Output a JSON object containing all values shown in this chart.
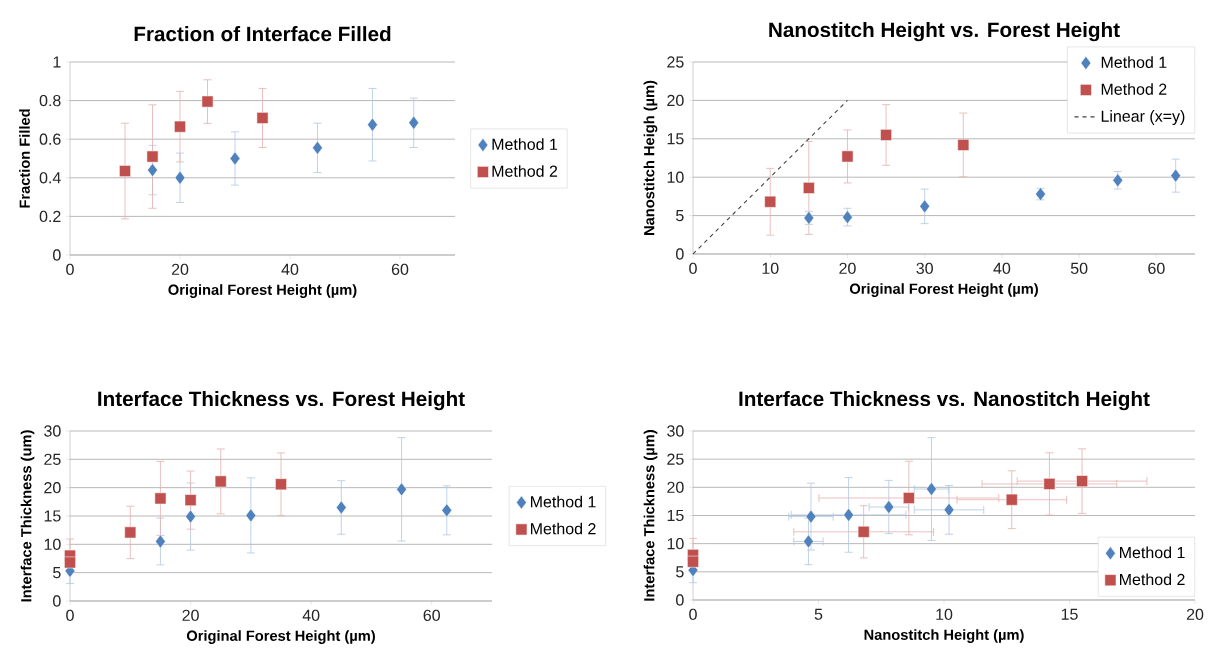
{
  "chart_data": [
    {
      "type": "scatter",
      "title": "Fraction of Interface Filled",
      "xlabel": "Original Forest Height (µm)",
      "ylabel": "Fraction Filled",
      "xlim": [
        0,
        70
      ],
      "xticks": [
        0,
        20,
        40,
        60
      ],
      "ylim": [
        0,
        1
      ],
      "yticks": [
        0,
        0.2,
        0.4,
        0.6,
        0.8,
        1
      ],
      "grid": "y",
      "legend": "right",
      "series": [
        {
          "name": "Method 1",
          "color": "#4f81bd",
          "marker": "diamond",
          "x": [
            15,
            20,
            30,
            45,
            55,
            62.5
          ],
          "values": [
            0.44,
            0.4,
            0.5,
            0.555,
            0.675,
            0.685
          ],
          "errors": [
            0.13,
            0.13,
            0.14,
            0.13,
            0.19,
            0.13
          ]
        },
        {
          "name": "Method 2",
          "color": "#c0504d",
          "marker": "square",
          "x": [
            10,
            15,
            20,
            25,
            35
          ],
          "values": [
            0.435,
            0.51,
            0.665,
            0.795,
            0.71
          ],
          "errors": [
            0.25,
            0.27,
            0.185,
            0.115,
            0.155
          ]
        }
      ]
    },
    {
      "type": "scatter",
      "title": "Nanostitch Height vs. Forest Height",
      "xlabel": "Original Forest Height (µm)",
      "ylabel": "Nanostitch Heigh (µm)",
      "xlim": [
        0,
        65
      ],
      "xticks": [
        0,
        10,
        20,
        30,
        40,
        50,
        60
      ],
      "ylim": [
        0,
        25
      ],
      "yticks": [
        0,
        5,
        10,
        15,
        20,
        25
      ],
      "grid": "y",
      "legend": "top right",
      "series": [
        {
          "name": "Method 1",
          "color": "#4f81bd",
          "marker": "diamond",
          "x": [
            15,
            20,
            30,
            45,
            55,
            62.5
          ],
          "values": [
            4.7,
            4.8,
            6.2,
            7.8,
            9.6,
            10.2
          ],
          "errors": [
            0.9,
            1.2,
            2.3,
            0.8,
            1.2,
            2.2
          ]
        },
        {
          "name": "Method 2",
          "color": "#c0504d",
          "marker": "square",
          "x": [
            10,
            15,
            20,
            25,
            35
          ],
          "values": [
            6.8,
            8.6,
            12.7,
            15.5,
            14.2
          ],
          "errors": [
            4.4,
            6.1,
            3.5,
            4.0,
            4.2
          ]
        },
        {
          "name": "Linear (x=y)",
          "type": "line",
          "color": "#404040",
          "marker": "none",
          "line_style": "dashed",
          "x": [
            0,
            20
          ],
          "values": [
            0,
            20
          ]
        }
      ]
    },
    {
      "type": "scatter",
      "title": "Interface Thickness vs. Forest Height",
      "xlabel": "Original Forest Height (µm)",
      "ylabel": "Interface Thickness (um)",
      "xlim": [
        0,
        70
      ],
      "xticks": [
        0,
        20,
        40,
        60
      ],
      "ylim": [
        0,
        30
      ],
      "yticks": [
        0,
        5,
        10,
        15,
        20,
        25,
        30
      ],
      "grid": "y",
      "legend": "right",
      "series": [
        {
          "name": "Method 1",
          "color": "#4f81bd",
          "marker": "diamond",
          "x": [
            0,
            15,
            20,
            30,
            45,
            55,
            62.5
          ],
          "values": [
            5.3,
            10.5,
            14.9,
            15.1,
            16.5,
            19.7,
            16.0
          ],
          "errors": [
            2.3,
            4.2,
            6.0,
            6.7,
            4.8,
            9.2,
            4.4
          ]
        },
        {
          "name": "Method 2",
          "color": "#c0504d",
          "marker": "square",
          "x": [
            0,
            0,
            10,
            15,
            20,
            25,
            35
          ],
          "values": [
            8.0,
            6.8,
            12.1,
            18.1,
            17.8,
            21.1,
            20.6
          ],
          "errors": [
            3.0,
            null,
            4.7,
            6.6,
            5.2,
            5.8,
            5.6
          ]
        }
      ]
    },
    {
      "type": "scatter",
      "title": "Interface Thickness vs. Nanostitch Height",
      "xlabel": "Nanostitch Height (µm)",
      "ylabel": "Interface Thickness (µm)",
      "xlim": [
        0,
        20
      ],
      "xticks": [
        0,
        5,
        10,
        15,
        20
      ],
      "ylim": [
        0,
        30
      ],
      "yticks": [
        0,
        5,
        10,
        15,
        20,
        25,
        30
      ],
      "grid": "y",
      "legend": "bottom right",
      "series": [
        {
          "name": "Method 1",
          "color": "#4f81bd",
          "marker": "diamond",
          "x": [
            0,
            4.6,
            4.7,
            6.2,
            7.8,
            9.5,
            10.2
          ],
          "values": [
            5.3,
            10.4,
            14.8,
            15.1,
            16.5,
            19.7,
            16.0
          ],
          "errors": [
            2.3,
            4.2,
            6.0,
            6.7,
            4.8,
            9.2,
            4.4
          ],
          "xerrors": [
            null,
            0.6,
            0.9,
            2.3,
            0.8,
            0.7,
            1.4
          ]
        },
        {
          "name": "Method 2",
          "color": "#c0504d",
          "marker": "square",
          "x": [
            0,
            0,
            6.8,
            8.6,
            12.7,
            14.2,
            15.5
          ],
          "values": [
            8.0,
            6.8,
            12.1,
            18.1,
            17.8,
            20.6,
            21.1
          ],
          "errors": [
            3.0,
            null,
            4.7,
            6.6,
            5.2,
            5.6,
            5.8
          ],
          "xerrors": [
            null,
            null,
            2.8,
            3.6,
            2.2,
            2.7,
            2.6
          ]
        }
      ]
    }
  ]
}
